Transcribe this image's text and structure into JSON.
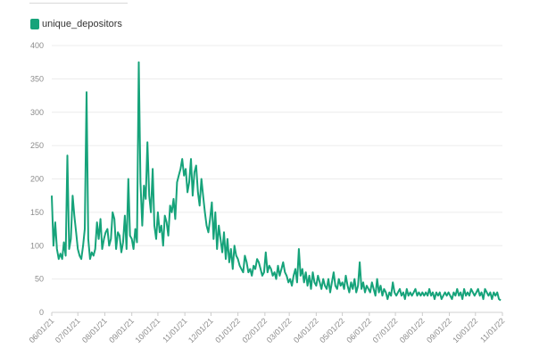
{
  "legend": {
    "label": "unique_depositors",
    "color": "#16a37a"
  },
  "chart_data": {
    "type": "line",
    "ylim": [
      0,
      400
    ],
    "yticks": [
      "0",
      "50",
      "100",
      "150",
      "200",
      "250",
      "300",
      "350",
      "400"
    ],
    "xticks": [
      "06/01/21",
      "07/01/21",
      "08/01/21",
      "09/01/21",
      "10/01/21",
      "11/01/21",
      "12/01/21",
      "01/01/22",
      "02/01/22",
      "03/01/22",
      "04/01/22",
      "05/01/22",
      "06/01/22",
      "07/01/22",
      "08/01/22",
      "09/01/22",
      "10/01/22",
      "11/01/22"
    ],
    "grid": true,
    "series": [
      {
        "name": "unique_depositors",
        "color": "#16a37a",
        "x": [
          "2021-06-01",
          "2021-06-03",
          "2021-06-05",
          "2021-06-07",
          "2021-06-09",
          "2021-06-11",
          "2021-06-13",
          "2021-06-15",
          "2021-06-17",
          "2021-06-19",
          "2021-06-21",
          "2021-06-23",
          "2021-06-25",
          "2021-06-27",
          "2021-06-29",
          "2021-07-01",
          "2021-07-03",
          "2021-07-05",
          "2021-07-07",
          "2021-07-09",
          "2021-07-11",
          "2021-07-13",
          "2021-07-15",
          "2021-07-17",
          "2021-07-19",
          "2021-07-21",
          "2021-07-23",
          "2021-07-25",
          "2021-07-27",
          "2021-07-29",
          "2021-07-31",
          "2021-08-02",
          "2021-08-04",
          "2021-08-06",
          "2021-08-08",
          "2021-08-10",
          "2021-08-12",
          "2021-08-14",
          "2021-08-16",
          "2021-08-18",
          "2021-08-20",
          "2021-08-22",
          "2021-08-24",
          "2021-08-26",
          "2021-08-28",
          "2021-08-30",
          "2021-09-01",
          "2021-09-03",
          "2021-09-05",
          "2021-09-07",
          "2021-09-09",
          "2021-09-11",
          "2021-09-13",
          "2021-09-15",
          "2021-09-17",
          "2021-09-19",
          "2021-09-21",
          "2021-09-23",
          "2021-09-25",
          "2021-09-27",
          "2021-09-29",
          "2021-10-01",
          "2021-10-03",
          "2021-10-05",
          "2021-10-07",
          "2021-10-09",
          "2021-10-11",
          "2021-10-13",
          "2021-10-15",
          "2021-10-17",
          "2021-10-19",
          "2021-10-21",
          "2021-10-23",
          "2021-10-25",
          "2021-10-27",
          "2021-10-29",
          "2021-10-31",
          "2021-11-02",
          "2021-11-04",
          "2021-11-06",
          "2021-11-08",
          "2021-11-10",
          "2021-11-12",
          "2021-11-14",
          "2021-11-16",
          "2021-11-18",
          "2021-11-20",
          "2021-11-22",
          "2021-11-24",
          "2021-11-26",
          "2021-11-28",
          "2021-11-30",
          "2021-12-02",
          "2021-12-04",
          "2021-12-06",
          "2021-12-08",
          "2021-12-10",
          "2021-12-12",
          "2021-12-14",
          "2021-12-16",
          "2021-12-18",
          "2021-12-20",
          "2021-12-22",
          "2021-12-24",
          "2021-12-26",
          "2021-12-28",
          "2021-12-30",
          "2022-01-01",
          "2022-01-03",
          "2022-01-05",
          "2022-01-07",
          "2022-01-09",
          "2022-01-11",
          "2022-01-13",
          "2022-01-15",
          "2022-01-17",
          "2022-01-19",
          "2022-01-21",
          "2022-01-23",
          "2022-01-25",
          "2022-01-27",
          "2022-01-29",
          "2022-01-31",
          "2022-02-02",
          "2022-02-04",
          "2022-02-06",
          "2022-02-08",
          "2022-02-10",
          "2022-02-12",
          "2022-02-14",
          "2022-02-16",
          "2022-02-18",
          "2022-02-20",
          "2022-02-22",
          "2022-02-24",
          "2022-02-26",
          "2022-02-28",
          "2022-03-02",
          "2022-03-04",
          "2022-03-06",
          "2022-03-08",
          "2022-03-10",
          "2022-03-12",
          "2022-03-14",
          "2022-03-16",
          "2022-03-18",
          "2022-03-20",
          "2022-03-22",
          "2022-03-24",
          "2022-03-26",
          "2022-03-28",
          "2022-03-30",
          "2022-04-01",
          "2022-04-03",
          "2022-04-05",
          "2022-04-07",
          "2022-04-09",
          "2022-04-11",
          "2022-04-13",
          "2022-04-15",
          "2022-04-17",
          "2022-04-19",
          "2022-04-21",
          "2022-04-23",
          "2022-04-25",
          "2022-04-27",
          "2022-04-29",
          "2022-05-01",
          "2022-05-03",
          "2022-05-05",
          "2022-05-07",
          "2022-05-09",
          "2022-05-11",
          "2022-05-13",
          "2022-05-15",
          "2022-05-17",
          "2022-05-19",
          "2022-05-21",
          "2022-05-23",
          "2022-05-25",
          "2022-05-27",
          "2022-05-29",
          "2022-05-31",
          "2022-06-02",
          "2022-06-04",
          "2022-06-06",
          "2022-06-08",
          "2022-06-10",
          "2022-06-12",
          "2022-06-14",
          "2022-06-16",
          "2022-06-18",
          "2022-06-20",
          "2022-06-22",
          "2022-06-24",
          "2022-06-26",
          "2022-06-28",
          "2022-06-30",
          "2022-07-02",
          "2022-07-04",
          "2022-07-06",
          "2022-07-08",
          "2022-07-10",
          "2022-07-12",
          "2022-07-14",
          "2022-07-16",
          "2022-07-18",
          "2022-07-20",
          "2022-07-22",
          "2022-07-24",
          "2022-07-26",
          "2022-07-28",
          "2022-07-30",
          "2022-08-01",
          "2022-08-03",
          "2022-08-05",
          "2022-08-07",
          "2022-08-09",
          "2022-08-11",
          "2022-08-13",
          "2022-08-15",
          "2022-08-17",
          "2022-08-19",
          "2022-08-21",
          "2022-08-23",
          "2022-08-25",
          "2022-08-27",
          "2022-08-29",
          "2022-08-31",
          "2022-09-02",
          "2022-09-04",
          "2022-09-06",
          "2022-09-08",
          "2022-09-10",
          "2022-09-12",
          "2022-09-14",
          "2022-09-16",
          "2022-09-18",
          "2022-09-20",
          "2022-09-22",
          "2022-09-24",
          "2022-09-26",
          "2022-09-28",
          "2022-09-30",
          "2022-10-02",
          "2022-10-04",
          "2022-10-06",
          "2022-10-08",
          "2022-10-10",
          "2022-10-12",
          "2022-10-14",
          "2022-10-16",
          "2022-10-18",
          "2022-10-20",
          "2022-10-22",
          "2022-10-24",
          "2022-10-26",
          "2022-10-28",
          "2022-10-30"
        ],
        "values": [
          175,
          100,
          135,
          95,
          80,
          88,
          80,
          105,
          85,
          235,
          95,
          110,
          175,
          145,
          120,
          95,
          85,
          80,
          100,
          125,
          330,
          110,
          80,
          90,
          85,
          95,
          135,
          110,
          140,
          95,
          110,
          120,
          125,
          100,
          110,
          150,
          140,
          95,
          120,
          115,
          90,
          105,
          145,
          95,
          200,
          115,
          110,
          95,
          125,
          105,
          375,
          195,
          130,
          190,
          170,
          255,
          175,
          150,
          215,
          130,
          110,
          150,
          120,
          130,
          100,
          145,
          135,
          115,
          160,
          150,
          170,
          140,
          195,
          205,
          215,
          230,
          205,
          215,
          180,
          195,
          230,
          175,
          210,
          220,
          180,
          160,
          200,
          175,
          150,
          130,
          120,
          140,
          165,
          110,
          150,
          95,
          130,
          110,
          90,
          120,
          80,
          110,
          75,
          95,
          65,
          100,
          85,
          80,
          70,
          65,
          60,
          85,
          75,
          60,
          65,
          55,
          70,
          65,
          80,
          75,
          65,
          55,
          60,
          90,
          60,
          70,
          65,
          55,
          60,
          50,
          70,
          55,
          65,
          75,
          60,
          55,
          45,
          50,
          40,
          55,
          65,
          45,
          95,
          55,
          65,
          45,
          60,
          40,
          55,
          35,
          60,
          45,
          40,
          55,
          45,
          35,
          50,
          40,
          35,
          50,
          30,
          45,
          60,
          40,
          35,
          50,
          40,
          45,
          35,
          55,
          40,
          30,
          45,
          35,
          50,
          30,
          40,
          75,
          35,
          45,
          30,
          40,
          35,
          30,
          45,
          35,
          25,
          50,
          30,
          40,
          25,
          35,
          30,
          20,
          30,
          25,
          45,
          30,
          25,
          30,
          35,
          25,
          30,
          20,
          35,
          25,
          30,
          25,
          30,
          35,
          25,
          30,
          25,
          30,
          25,
          30,
          25,
          35,
          25,
          30,
          20,
          30,
          25,
          30,
          20,
          25,
          30,
          25,
          30,
          25,
          20,
          30,
          25,
          35,
          25,
          30,
          20,
          35,
          25,
          30,
          25,
          35,
          30,
          25,
          30,
          35,
          25,
          30,
          20,
          35,
          30,
          25,
          30,
          20,
          30,
          25,
          30,
          20,
          18
        ]
      }
    ]
  }
}
